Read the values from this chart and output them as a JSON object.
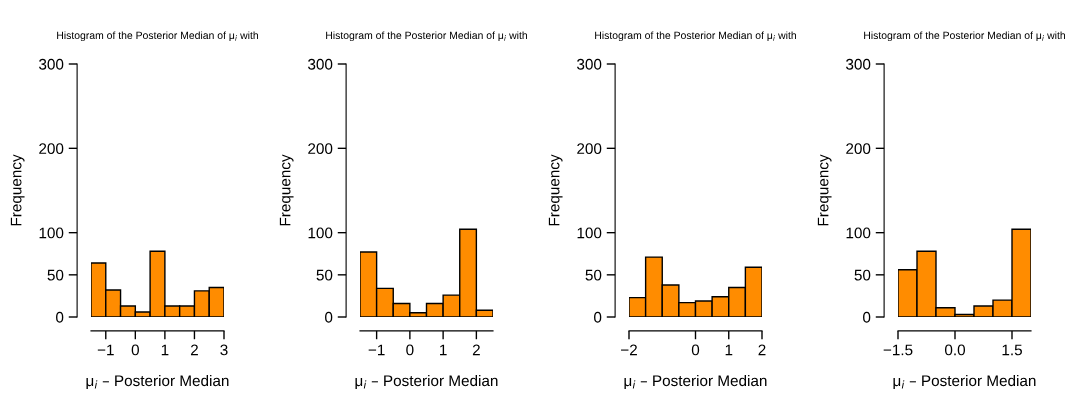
{
  "chart_data": [
    {
      "type": "histogram",
      "title": "Histogram of the Posterior Median of μ$_{i}$ with",
      "xlabel": "μ$_{i}$ – Posterior Median",
      "ylabel": "Frequency",
      "color": "#ff8c00",
      "bins": [
        -1.5,
        -1.0,
        -0.5,
        0.0,
        0.5,
        1.0,
        1.5,
        2.0,
        2.5,
        3.0
      ],
      "values": [
        64,
        32,
        13,
        6,
        78,
        13,
        13,
        31,
        35
      ],
      "xlim": [
        -1.5,
        3.0
      ],
      "xticks": [
        {
          "value": -1,
          "label": "−1"
        },
        0,
        1,
        2,
        3
      ],
      "ylim": [
        0,
        300
      ],
      "yticks": [
        0,
        50,
        100,
        200,
        300
      ]
    },
    {
      "type": "histogram",
      "title": "Histogram of the Posterior Median of μ$_{i}$ with",
      "xlabel": "μ$_{i}$ – Posterior Median",
      "ylabel": "Frequency",
      "color": "#ff8c00",
      "bins": [
        -1.5,
        -1.0,
        -0.5,
        0.0,
        0.5,
        1.0,
        1.5,
        2.0,
        2.5
      ],
      "values": [
        77,
        34,
        16,
        5,
        16,
        26,
        104,
        8
      ],
      "xlim": [
        -1.5,
        2.5
      ],
      "xticks": [
        {
          "value": -1,
          "label": "−1"
        },
        0,
        1,
        2
      ],
      "ylim": [
        0,
        300
      ],
      "yticks": [
        0,
        50,
        100,
        200,
        300
      ]
    },
    {
      "type": "histogram",
      "title": "Histogram of the Posterior Median of μ$_{i}$ with",
      "xlabel": "μ$_{i}$ – Posterior Median",
      "ylabel": "Frequency",
      "color": "#ff8c00",
      "bins": [
        -2.0,
        -1.5,
        -1.0,
        -0.5,
        0.0,
        0.5,
        1.0,
        1.5,
        2.0
      ],
      "values": [
        23,
        71,
        38,
        17,
        19,
        24,
        35,
        59
      ],
      "xlim": [
        -2.0,
        2.0
      ],
      "xticks": [
        {
          "value": -2,
          "label": "−2"
        },
        0,
        1,
        2
      ],
      "ylim": [
        0,
        300
      ],
      "yticks": [
        0,
        50,
        100,
        200,
        300
      ]
    },
    {
      "type": "histogram",
      "title": "Histogram of the Posterior Median of μ$_{i}$ with",
      "xlabel": "μ$_{i}$ – Posterior Median",
      "ylabel": "Frequency",
      "color": "#ff8c00",
      "bins": [
        -1.5,
        -1.0,
        -0.5,
        0.0,
        0.5,
        1.0,
        1.5,
        2.0
      ],
      "values": [
        56,
        78,
        11,
        3,
        13,
        20,
        104
      ],
      "xlim": [
        -1.5,
        2.0
      ],
      "xticks": [
        {
          "value": -1.5,
          "label": "−1.5"
        },
        {
          "value": 0.0,
          "label": "0.0"
        },
        {
          "value": 1.5,
          "label": "1.5"
        }
      ],
      "ylim": [
        0,
        300
      ],
      "yticks": [
        0,
        50,
        100,
        200,
        300
      ]
    }
  ]
}
